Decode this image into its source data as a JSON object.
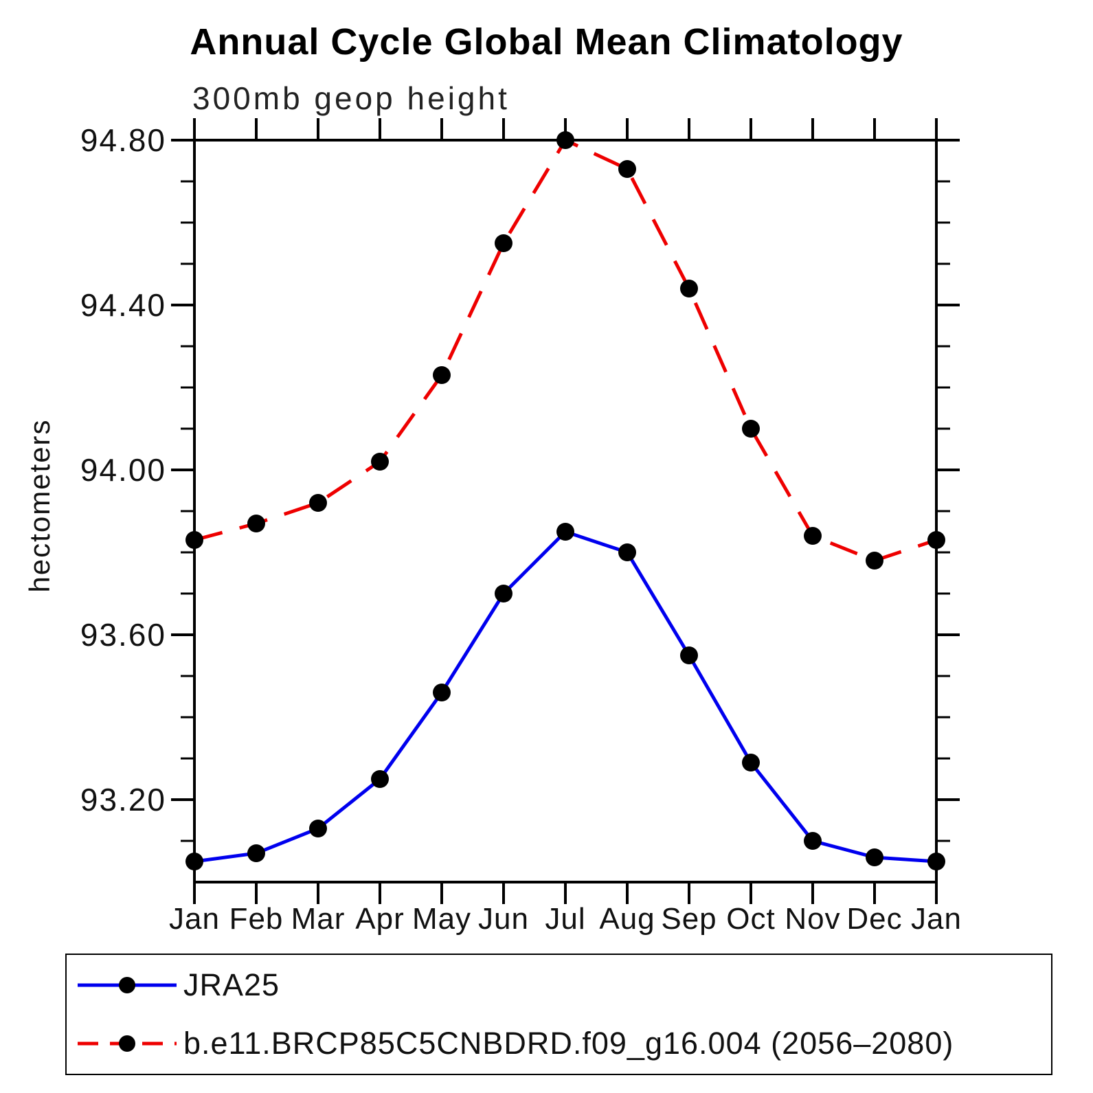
{
  "title": "Annual Cycle Global Mean Climatology",
  "subtitle": "300mb geop height",
  "ylabel": "hectometers",
  "colors": {
    "series1": "#0000ee",
    "series2": "#ee0000",
    "marker": "#000000",
    "axis": "#000000"
  },
  "legend": {
    "entries": [
      {
        "label": "JRA25",
        "color": "#0000ee",
        "style": "solid"
      },
      {
        "label": "b.e11.BRCP85C5CNBDRD.f09_g16.004 (2056–2080)",
        "color": "#ee0000",
        "style": "dashed"
      }
    ]
  },
  "chart_data": {
    "type": "line",
    "title": "Annual Cycle Global Mean Climatology",
    "subtitle": "300mb geop height",
    "ylabel": "hectometers",
    "categories": [
      "Jan",
      "Feb",
      "Mar",
      "Apr",
      "May",
      "Jun",
      "Jul",
      "Aug",
      "Sep",
      "Oct",
      "Nov",
      "Dec",
      "Jan"
    ],
    "series": [
      {
        "name": "JRA25",
        "color": "#0000ee",
        "line_style": "solid",
        "marker": "filled-circle",
        "marker_color": "#000000",
        "values": [
          93.05,
          93.07,
          93.13,
          93.25,
          93.46,
          93.7,
          93.85,
          93.8,
          93.55,
          93.29,
          93.1,
          93.06,
          93.05
        ]
      },
      {
        "name": "b.e11.BRCP85C5CNBDRD.f09_g16.004 (2056–2080)",
        "color": "#ee0000",
        "line_style": "dashed",
        "marker": "filled-circle",
        "marker_color": "#000000",
        "values": [
          93.83,
          93.87,
          93.92,
          94.02,
          94.23,
          94.55,
          94.8,
          94.73,
          94.44,
          94.1,
          93.84,
          93.78,
          93.83
        ]
      }
    ],
    "ylim": [
      93.0,
      94.8
    ],
    "yticks_major": [
      93.2,
      93.6,
      94.0,
      94.4,
      94.8
    ],
    "ytick_labels": [
      "93.20",
      "93.60",
      "94.00",
      "94.40",
      "94.80"
    ],
    "y_minor_interval": 0.1,
    "grid": false,
    "legend_position": "bottom"
  }
}
